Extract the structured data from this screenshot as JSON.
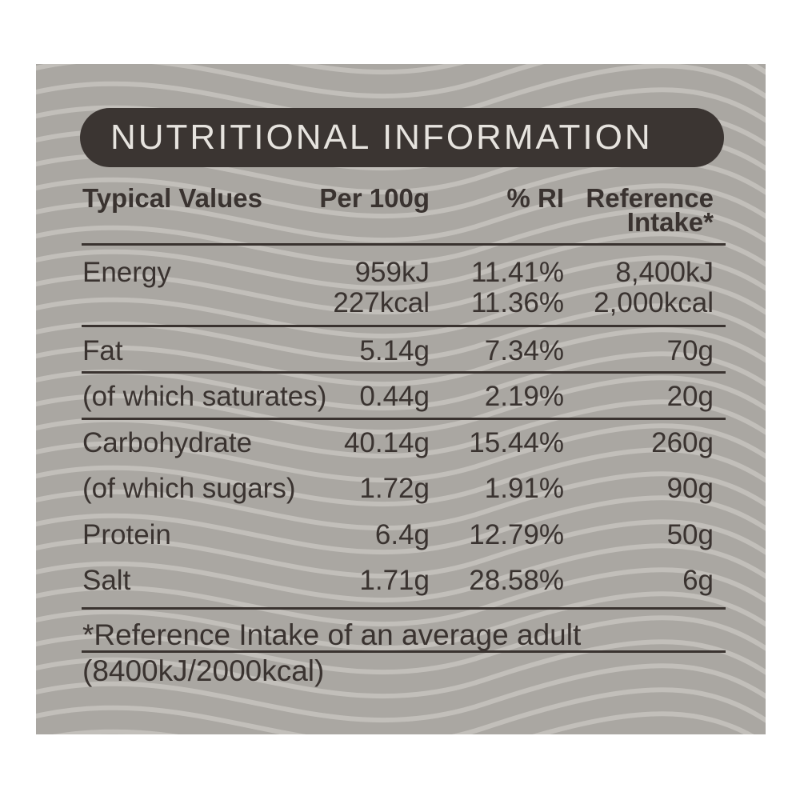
{
  "title": "NUTRITIONAL INFORMATION",
  "table": {
    "header": [
      [
        "Typical Values"
      ],
      [
        "Per 100g"
      ],
      [
        "% RI"
      ],
      [
        "Reference",
        "Intake*"
      ]
    ],
    "rows": [
      [
        [
          "Energy"
        ],
        [
          "959kJ",
          "227kcal"
        ],
        [
          "11.41%",
          "11.36%"
        ],
        [
          "8,400kJ",
          "2,000kcal"
        ]
      ],
      [
        [
          "Fat"
        ],
        [
          "5.14g"
        ],
        [
          "7.34%"
        ],
        [
          "70g"
        ]
      ],
      [
        [
          "(of which saturates)"
        ],
        [
          "0.44g"
        ],
        [
          "2.19%"
        ],
        [
          "20g"
        ]
      ],
      [
        [
          "Carbohydrate"
        ],
        [
          "40.14g"
        ],
        [
          "15.44%"
        ],
        [
          "260g"
        ]
      ],
      [
        [
          "(of which sugars)"
        ],
        [
          "1.72g"
        ],
        [
          "1.91%"
        ],
        [
          "90g"
        ]
      ],
      [
        [
          "Protein"
        ],
        [
          "6.4g"
        ],
        [
          "12.79%"
        ],
        [
          "50g"
        ]
      ],
      [
        [
          "Salt"
        ],
        [
          "1.71g"
        ],
        [
          "28.58%"
        ],
        [
          "6g"
        ]
      ]
    ]
  },
  "footnote": [
    "*Reference Intake of an average adult",
    "(8400kJ/2000kcal)"
  ]
}
